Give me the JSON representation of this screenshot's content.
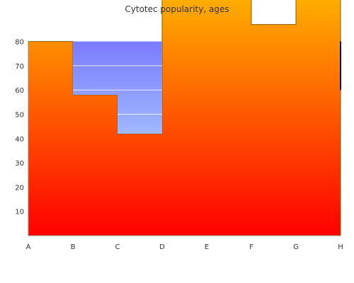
{
  "chart_data": {
    "type": "area",
    "title": "Cytotec popularity, ages",
    "xlabel": "",
    "ylabel": "",
    "categories": [
      "A",
      "B",
      "C",
      "D",
      "E",
      "F",
      "G",
      "H"
    ],
    "y_ticks": [
      10,
      20,
      30,
      40,
      50,
      60,
      70,
      80
    ],
    "ylim": [
      0,
      97
    ],
    "grid": false,
    "series": [
      {
        "values": [
          null,
          80,
          80,
          null,
          null,
          null,
          null,
          80
        ],
        "fill_top": "#7b7bff",
        "fill_bottom": "#9fb8ff",
        "line_color": "#ffffff"
      },
      {
        "values": [
          80,
          58,
          42,
          98,
          99,
          87,
          98,
          98
        ],
        "fill_top": "#ffb000",
        "fill_bottom": "#ff0000",
        "line_color": "#806000"
      }
    ]
  }
}
